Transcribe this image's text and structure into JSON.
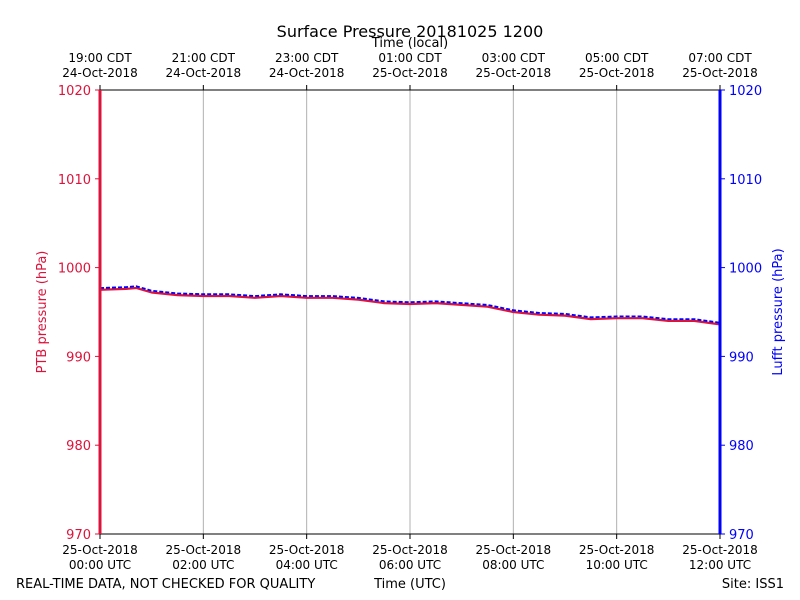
{
  "colors": {
    "ptb": "#dc143c",
    "lufft": "#0000ff",
    "grid": "#b0b0b0",
    "frame": "#000000"
  },
  "chart_data": {
    "type": "line",
    "title": "Surface Pressure 20181025 1200",
    "top_axis_label": "Time (local)",
    "xlabel": "Time (UTC)",
    "ylabel_left": "PTB pressure (hPa)",
    "ylabel_right": "Lufft pressure (hPa)",
    "ylim": [
      970,
      1020
    ],
    "xlim_hours": [
      0,
      12
    ],
    "yticks": [
      970,
      980,
      990,
      1000,
      1010,
      1020
    ],
    "grid": "vertical",
    "x_ticks": [
      {
        "hour": 0,
        "line1": "25-Oct-2018",
        "line2": "00:00 UTC"
      },
      {
        "hour": 2,
        "line1": "25-Oct-2018",
        "line2": "02:00 UTC"
      },
      {
        "hour": 4,
        "line1": "25-Oct-2018",
        "line2": "04:00 UTC"
      },
      {
        "hour": 6,
        "line1": "25-Oct-2018",
        "line2": "06:00 UTC"
      },
      {
        "hour": 8,
        "line1": "25-Oct-2018",
        "line2": "08:00 UTC"
      },
      {
        "hour": 10,
        "line1": "25-Oct-2018",
        "line2": "10:00 UTC"
      },
      {
        "hour": 12,
        "line1": "25-Oct-2018",
        "line2": "12:00 UTC"
      }
    ],
    "top_ticks": [
      {
        "hour": 0,
        "line1": "19:00 CDT",
        "line2": "24-Oct-2018"
      },
      {
        "hour": 2,
        "line1": "21:00 CDT",
        "line2": "24-Oct-2018"
      },
      {
        "hour": 4,
        "line1": "23:00 CDT",
        "line2": "24-Oct-2018"
      },
      {
        "hour": 6,
        "line1": "01:00 CDT",
        "line2": "25-Oct-2018"
      },
      {
        "hour": 8,
        "line1": "03:00 CDT",
        "line2": "25-Oct-2018"
      },
      {
        "hour": 10,
        "line1": "05:00 CDT",
        "line2": "25-Oct-2018"
      },
      {
        "hour": 12,
        "line1": "07:00 CDT",
        "line2": "25-Oct-2018"
      }
    ],
    "series": [
      {
        "name": "PTB",
        "axis": "left",
        "x": [
          0,
          0.5,
          0.7,
          1.0,
          1.5,
          2.0,
          2.5,
          3.0,
          3.5,
          4.0,
          4.5,
          5.0,
          5.5,
          6.0,
          6.5,
          7.0,
          7.5,
          8.0,
          8.5,
          9.0,
          9.5,
          10.0,
          10.5,
          11.0,
          11.5,
          12.0
        ],
        "y": [
          997.5,
          997.6,
          997.7,
          997.2,
          996.9,
          996.8,
          996.8,
          996.6,
          996.8,
          996.6,
          996.6,
          996.4,
          996.0,
          995.9,
          996.0,
          995.8,
          995.6,
          995.0,
          994.7,
          994.6,
          994.2,
          994.3,
          994.3,
          994.0,
          994.0,
          993.6
        ]
      },
      {
        "name": "Lufft",
        "axis": "right",
        "x": [
          0,
          0.5,
          0.7,
          1.0,
          1.5,
          2.0,
          2.5,
          3.0,
          3.5,
          4.0,
          4.5,
          5.0,
          5.5,
          6.0,
          6.5,
          7.0,
          7.5,
          8.0,
          8.5,
          9.0,
          9.5,
          10.0,
          10.5,
          11.0,
          11.5,
          12.0
        ],
        "y": [
          997.7,
          997.8,
          997.9,
          997.4,
          997.1,
          997.0,
          997.0,
          996.8,
          997.0,
          996.8,
          996.8,
          996.6,
          996.2,
          996.1,
          996.2,
          996.0,
          995.8,
          995.2,
          994.9,
          994.8,
          994.4,
          994.5,
          994.5,
          994.2,
          994.2,
          993.8
        ]
      }
    ]
  },
  "footer": {
    "left": "REAL-TIME DATA, NOT CHECKED FOR QUALITY",
    "center": "Time (UTC)",
    "right": "Site: ISS1"
  }
}
